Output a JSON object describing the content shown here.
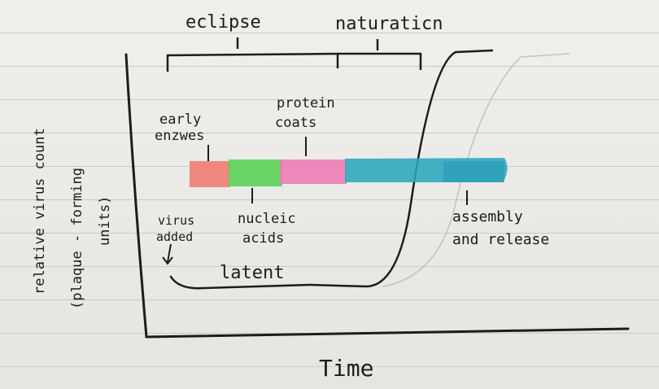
{
  "diagram": {
    "labels": {
      "eclipse": "eclipse",
      "maturation": "naturaticn",
      "early_enzymes_line1": "early",
      "early_enzymes_line2": "enzwes",
      "protein_coats_line1": "protein",
      "protein_coats_line2": "coats",
      "virus_added_line1": "virus",
      "virus_added_line2": "added",
      "nucleic_acids_line1": "nucleic",
      "nucleic_acids_line2": "acids",
      "assembly_line1": "assembly",
      "assembly_line2": "and release",
      "latent": "latent",
      "y_axis_line1": "relative virus count",
      "y_axis_line2": "(plaque - forming",
      "y_axis_line3": "units)",
      "x_axis": "Time"
    },
    "colors": {
      "ink": "#1c1c1c",
      "early_enzymes": "#f07d72",
      "nucleic_acids": "#5dd35a",
      "protein_coats": "#ec7db5",
      "assembly": "#2aa7bd"
    }
  }
}
